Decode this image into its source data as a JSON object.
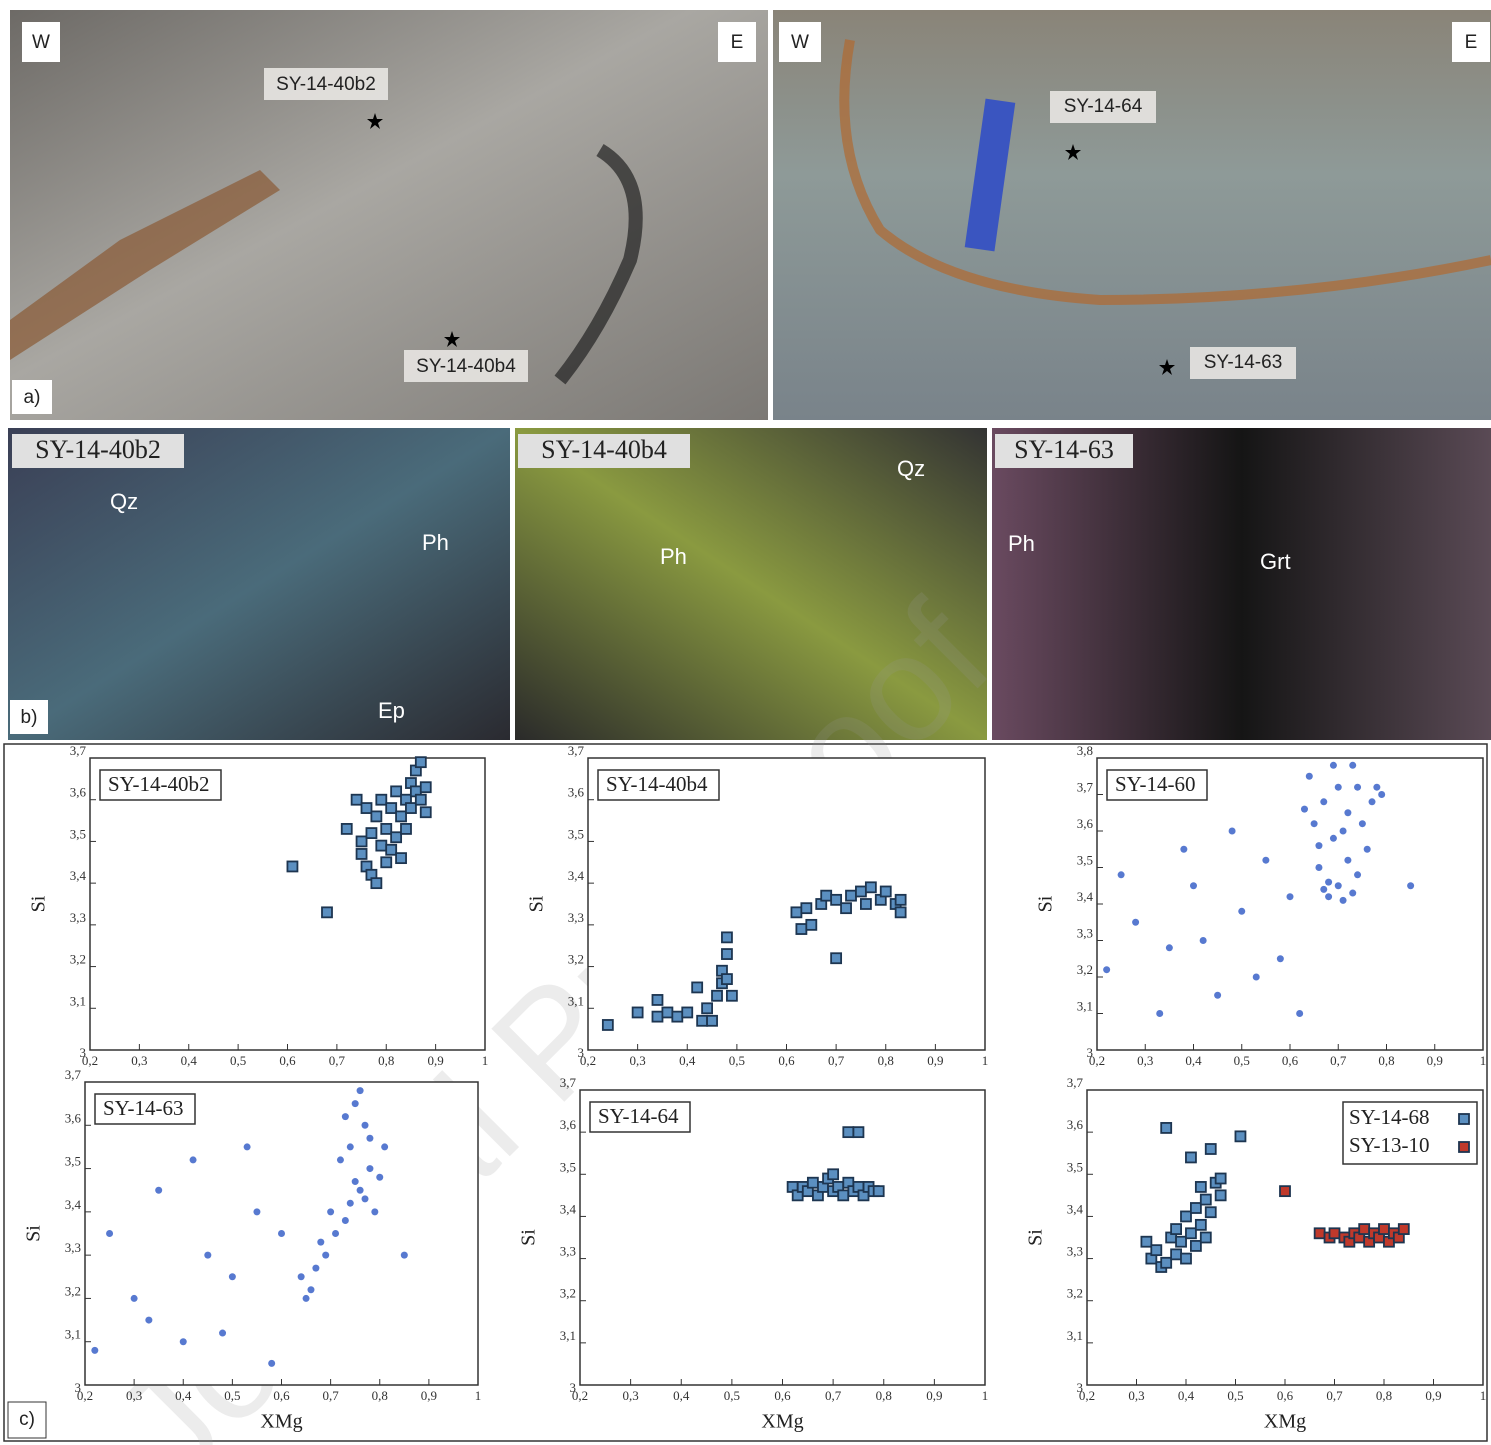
{
  "watermark": "Journal Pre-proof",
  "panel_a": {
    "label": "a)",
    "left": {
      "west": "W",
      "east": "E",
      "sample_top": "SY-14-40b2",
      "sample_bottom": "SY-14-40b4"
    },
    "right": {
      "west": "W",
      "east": "E",
      "sample_top": "SY-14-64",
      "sample_bottom": "SY-14-63"
    }
  },
  "panel_b": {
    "label": "b)",
    "images": [
      {
        "title": "SY-14-40b2",
        "minerals": [
          "Qz",
          "Ph",
          "Ep"
        ]
      },
      {
        "title": "SY-14-40b4",
        "minerals": [
          "Qz",
          "Ph"
        ]
      },
      {
        "title": "SY-14-63",
        "minerals": [
          "Ph",
          "Grt"
        ]
      }
    ]
  },
  "panel_c": {
    "label": "c)"
  },
  "chart_data": [
    {
      "type": "scatter",
      "title": "SY-14-40b2",
      "ylabel": "Si",
      "marker": "square",
      "color": "#5b8fc0",
      "xlim": [
        0.2,
        1
      ],
      "ylim": [
        3,
        3.7
      ],
      "xticks": [
        {
          "value": 0.2,
          "label": "0,2"
        },
        {
          "value": 0.3,
          "label": "0,3"
        },
        {
          "value": 0.4,
          "label": "0,4"
        },
        {
          "value": 0.5,
          "label": "0,5"
        },
        {
          "value": 0.6,
          "label": "0,6"
        },
        {
          "value": 0.7,
          "label": "0,7"
        },
        {
          "value": 0.8,
          "label": "0,8"
        },
        {
          "value": 0.9,
          "label": "0,9"
        },
        1
      ],
      "yticks": [
        3,
        {
          "value": 3.1,
          "label": "3,1"
        },
        {
          "value": 3.2,
          "label": "3,2"
        },
        {
          "value": 3.3,
          "label": "3,3"
        },
        {
          "value": 3.4,
          "label": "3,4"
        },
        {
          "value": 3.5,
          "label": "3,5"
        },
        {
          "value": 3.6,
          "label": "3,6"
        },
        {
          "value": 3.7,
          "label": "3,7"
        }
      ],
      "x": [
        0.61,
        0.68,
        0.72,
        0.74,
        0.75,
        0.75,
        0.76,
        0.76,
        0.77,
        0.77,
        0.78,
        0.78,
        0.79,
        0.79,
        0.8,
        0.8,
        0.81,
        0.81,
        0.82,
        0.82,
        0.83,
        0.83,
        0.84,
        0.84,
        0.85,
        0.85,
        0.86,
        0.86,
        0.87,
        0.87,
        0.88,
        0.88
      ],
      "values": [
        3.44,
        3.33,
        3.53,
        3.6,
        3.5,
        3.47,
        3.58,
        3.44,
        3.42,
        3.52,
        3.4,
        3.56,
        3.49,
        3.6,
        3.45,
        3.53,
        3.48,
        3.58,
        3.51,
        3.62,
        3.46,
        3.56,
        3.6,
        3.53,
        3.64,
        3.58,
        3.67,
        3.62,
        3.6,
        3.69,
        3.63,
        3.57
      ]
    },
    {
      "type": "scatter",
      "title": "SY-14-40b4",
      "ylabel": "Si",
      "marker": "square",
      "color": "#5b8fc0",
      "xlim": [
        0.2,
        1
      ],
      "ylim": [
        3,
        3.7
      ],
      "xticks": [
        {
          "value": 0.2,
          "label": "0,2"
        },
        {
          "value": 0.3,
          "label": "0,3"
        },
        {
          "value": 0.4,
          "label": "0,4"
        },
        {
          "value": 0.5,
          "label": "0,5"
        },
        {
          "value": 0.6,
          "label": "0,6"
        },
        {
          "value": 0.7,
          "label": "0,7"
        },
        {
          "value": 0.8,
          "label": "0,8"
        },
        {
          "value": 0.9,
          "label": "0,9"
        },
        1
      ],
      "yticks": [
        3,
        {
          "value": 3.1,
          "label": "3,1"
        },
        {
          "value": 3.2,
          "label": "3,2"
        },
        {
          "value": 3.3,
          "label": "3,3"
        },
        {
          "value": 3.4,
          "label": "3,4"
        },
        {
          "value": 3.5,
          "label": "3,5"
        },
        {
          "value": 3.6,
          "label": "3,6"
        },
        {
          "value": 3.7,
          "label": "3,7"
        }
      ],
      "x": [
        0.24,
        0.3,
        0.34,
        0.34,
        0.36,
        0.38,
        0.4,
        0.42,
        0.43,
        0.44,
        0.45,
        0.46,
        0.47,
        0.47,
        0.48,
        0.48,
        0.49,
        0.48,
        0.62,
        0.63,
        0.64,
        0.65,
        0.67,
        0.68,
        0.7,
        0.7,
        0.72,
        0.73,
        0.75,
        0.76,
        0.77,
        0.79,
        0.8,
        0.82,
        0.83,
        0.83
      ],
      "values": [
        3.06,
        3.09,
        3.12,
        3.08,
        3.09,
        3.08,
        3.09,
        3.15,
        3.07,
        3.1,
        3.07,
        3.13,
        3.16,
        3.19,
        3.27,
        3.23,
        3.13,
        3.17,
        3.33,
        3.29,
        3.34,
        3.3,
        3.35,
        3.37,
        3.22,
        3.36,
        3.34,
        3.37,
        3.38,
        3.35,
        3.39,
        3.36,
        3.38,
        3.35,
        3.33,
        3.36
      ]
    },
    {
      "type": "scatter",
      "title": "SY-14-60",
      "ylabel": "Si",
      "marker": "dot",
      "color": "#3a62c8",
      "xlim": [
        0.2,
        1
      ],
      "ylim": [
        3,
        3.8
      ],
      "xticks": [
        {
          "value": 0.2,
          "label": "0,2"
        },
        {
          "value": 0.3,
          "label": "0,3"
        },
        {
          "value": 0.4,
          "label": "0,4"
        },
        {
          "value": 0.5,
          "label": "0,5"
        },
        {
          "value": 0.6,
          "label": "0,6"
        },
        {
          "value": 0.7,
          "label": "0,7"
        },
        {
          "value": 0.8,
          "label": "0,8"
        },
        {
          "value": 0.9,
          "label": "0,9"
        },
        1
      ],
      "yticks": [
        3,
        {
          "value": 3.1,
          "label": "3,1"
        },
        {
          "value": 3.2,
          "label": "3,2"
        },
        {
          "value": 3.3,
          "label": "3,3"
        },
        {
          "value": 3.4,
          "label": "3,4"
        },
        {
          "value": 3.5,
          "label": "3,5"
        },
        {
          "value": 3.6,
          "label": "3,6"
        },
        {
          "value": 3.7,
          "label": "3,7"
        },
        {
          "value": 3.8,
          "label": "3,8"
        }
      ],
      "x": [
        0.68,
        0.7,
        0.66,
        0.72,
        0.69,
        0.65,
        0.67,
        0.7,
        0.64,
        0.73,
        0.75,
        0.77,
        0.78,
        0.76,
        0.74,
        0.71,
        0.68,
        0.63,
        0.72,
        0.69,
        0.66,
        0.79,
        0.74,
        0.71,
        0.67,
        0.73,
        0.22,
        0.28,
        0.35,
        0.4,
        0.45,
        0.5,
        0.55,
        0.58,
        0.33,
        0.48,
        0.25,
        0.6,
        0.42,
        0.53,
        0.38,
        0.85,
        0.62
      ],
      "values": [
        3.42,
        3.45,
        3.5,
        3.52,
        3.58,
        3.62,
        3.68,
        3.72,
        3.75,
        3.78,
        3.62,
        3.68,
        3.72,
        3.55,
        3.48,
        3.41,
        3.46,
        3.66,
        3.65,
        3.78,
        3.56,
        3.7,
        3.72,
        3.6,
        3.44,
        3.43,
        3.22,
        3.35,
        3.28,
        3.45,
        3.15,
        3.38,
        3.52,
        3.25,
        3.1,
        3.6,
        3.48,
        3.42,
        3.3,
        3.2,
        3.55,
        3.45,
        3.1
      ]
    },
    {
      "type": "scatter",
      "title": "SY-14-63",
      "xlabel": "XMg",
      "ylabel": "Si",
      "marker": "dot",
      "color": "#3a62c8",
      "xlim": [
        0.2,
        1
      ],
      "ylim": [
        3,
        3.7
      ],
      "xticks": [
        {
          "value": 0.2,
          "label": "0,2"
        },
        {
          "value": 0.3,
          "label": "0,3"
        },
        {
          "value": 0.4,
          "label": "0,4"
        },
        {
          "value": 0.5,
          "label": "0,5"
        },
        {
          "value": 0.6,
          "label": "0,6"
        },
        {
          "value": 0.7,
          "label": "0,7"
        },
        {
          "value": 0.8,
          "label": "0,8"
        },
        {
          "value": 0.9,
          "label": "0,9"
        },
        1
      ],
      "yticks": [
        3,
        {
          "value": 3.1,
          "label": "3,1"
        },
        {
          "value": 3.2,
          "label": "3,2"
        },
        {
          "value": 3.3,
          "label": "3,3"
        },
        {
          "value": 3.4,
          "label": "3,4"
        },
        {
          "value": 3.5,
          "label": "3,5"
        },
        {
          "value": 3.6,
          "label": "3,6"
        },
        {
          "value": 3.7,
          "label": "3,7"
        }
      ],
      "x": [
        0.76,
        0.78,
        0.74,
        0.77,
        0.75,
        0.79,
        0.73,
        0.8,
        0.72,
        0.76,
        0.78,
        0.74,
        0.71,
        0.69,
        0.67,
        0.66,
        0.68,
        0.7,
        0.81,
        0.75,
        0.77,
        0.73,
        0.64,
        0.65,
        0.25,
        0.3,
        0.35,
        0.4,
        0.45,
        0.5,
        0.55,
        0.58,
        0.6,
        0.42,
        0.33,
        0.48,
        0.53,
        0.22,
        0.85
      ],
      "values": [
        3.45,
        3.5,
        3.55,
        3.6,
        3.65,
        3.4,
        3.38,
        3.48,
        3.52,
        3.68,
        3.57,
        3.42,
        3.35,
        3.3,
        3.27,
        3.22,
        3.33,
        3.4,
        3.55,
        3.47,
        3.43,
        3.62,
        3.25,
        3.2,
        3.35,
        3.2,
        3.45,
        3.1,
        3.3,
        3.25,
        3.4,
        3.05,
        3.35,
        3.52,
        3.15,
        3.12,
        3.55,
        3.08,
        3.3
      ]
    },
    {
      "type": "scatter",
      "title": "SY-14-64",
      "xlabel": "XMg",
      "ylabel": "Si",
      "marker": "square",
      "color": "#5b8fc0",
      "xlim": [
        0.2,
        1
      ],
      "ylim": [
        3,
        3.7
      ],
      "xticks": [
        {
          "value": 0.2,
          "label": "0,2"
        },
        {
          "value": 0.3,
          "label": "0,3"
        },
        {
          "value": 0.4,
          "label": "0,4"
        },
        {
          "value": 0.5,
          "label": "0,5"
        },
        {
          "value": 0.6,
          "label": "0,6"
        },
        {
          "value": 0.7,
          "label": "0,7"
        },
        {
          "value": 0.8,
          "label": "0,8"
        },
        {
          "value": 0.9,
          "label": "0,9"
        },
        1
      ],
      "yticks": [
        3,
        {
          "value": 3.1,
          "label": "3,1"
        },
        {
          "value": 3.2,
          "label": "3,2"
        },
        {
          "value": 3.3,
          "label": "3,3"
        },
        {
          "value": 3.4,
          "label": "3,4"
        },
        {
          "value": 3.5,
          "label": "3,5"
        },
        {
          "value": 3.6,
          "label": "3,6"
        },
        {
          "value": 3.7,
          "label": "3,7"
        }
      ],
      "x": [
        0.73,
        0.75,
        0.62,
        0.63,
        0.64,
        0.65,
        0.66,
        0.67,
        0.68,
        0.69,
        0.7,
        0.7,
        0.71,
        0.72,
        0.73,
        0.74,
        0.75,
        0.76,
        0.77,
        0.78,
        0.79
      ],
      "values": [
        3.6,
        3.6,
        3.47,
        3.45,
        3.47,
        3.46,
        3.48,
        3.45,
        3.47,
        3.49,
        3.46,
        3.5,
        3.47,
        3.45,
        3.48,
        3.46,
        3.47,
        3.45,
        3.47,
        3.46,
        3.46
      ]
    },
    {
      "type": "scatter",
      "xlabel": "XMg",
      "ylabel": "Si",
      "marker": "square",
      "legend": "upper right",
      "xlim": [
        0.2,
        1
      ],
      "ylim": [
        3,
        3.7
      ],
      "xticks": [
        {
          "value": 0.2,
          "label": "0,2"
        },
        {
          "value": 0.3,
          "label": "0,3"
        },
        {
          "value": 0.4,
          "label": "0,4"
        },
        {
          "value": 0.5,
          "label": "0,5"
        },
        {
          "value": 0.6,
          "label": "0,6"
        },
        {
          "value": 0.7,
          "label": "0,7"
        },
        {
          "value": 0.8,
          "label": "0,8"
        },
        {
          "value": 0.9,
          "label": "0,9"
        },
        1
      ],
      "yticks": [
        3,
        {
          "value": 3.1,
          "label": "3,1"
        },
        {
          "value": 3.2,
          "label": "3,2"
        },
        {
          "value": 3.3,
          "label": "3,3"
        },
        {
          "value": 3.4,
          "label": "3,4"
        },
        {
          "value": 3.5,
          "label": "3,5"
        },
        {
          "value": 3.6,
          "label": "3,6"
        },
        {
          "value": 3.7,
          "label": "3,7"
        }
      ],
      "series": [
        {
          "name": "SY-14-68",
          "color": "#5b8fc0",
          "x": [
            0.32,
            0.33,
            0.34,
            0.35,
            0.36,
            0.36,
            0.37,
            0.38,
            0.38,
            0.39,
            0.4,
            0.4,
            0.41,
            0.41,
            0.42,
            0.42,
            0.43,
            0.43,
            0.44,
            0.44,
            0.45,
            0.45,
            0.46,
            0.47,
            0.47,
            0.51
          ],
          "values": [
            3.34,
            3.3,
            3.32,
            3.28,
            3.61,
            3.29,
            3.35,
            3.31,
            3.37,
            3.34,
            3.4,
            3.3,
            3.36,
            3.54,
            3.42,
            3.33,
            3.38,
            3.47,
            3.44,
            3.35,
            3.56,
            3.41,
            3.48,
            3.45,
            3.49,
            3.59
          ]
        },
        {
          "name": "SY-13-10",
          "color": "#c0392b",
          "x": [
            0.6,
            0.67,
            0.69,
            0.7,
            0.72,
            0.73,
            0.74,
            0.75,
            0.76,
            0.77,
            0.78,
            0.79,
            0.8,
            0.81,
            0.82,
            0.83,
            0.84
          ],
          "values": [
            3.46,
            3.36,
            3.35,
            3.36,
            3.35,
            3.34,
            3.36,
            3.35,
            3.37,
            3.34,
            3.36,
            3.35,
            3.37,
            3.34,
            3.36,
            3.35,
            3.37
          ]
        }
      ]
    }
  ]
}
